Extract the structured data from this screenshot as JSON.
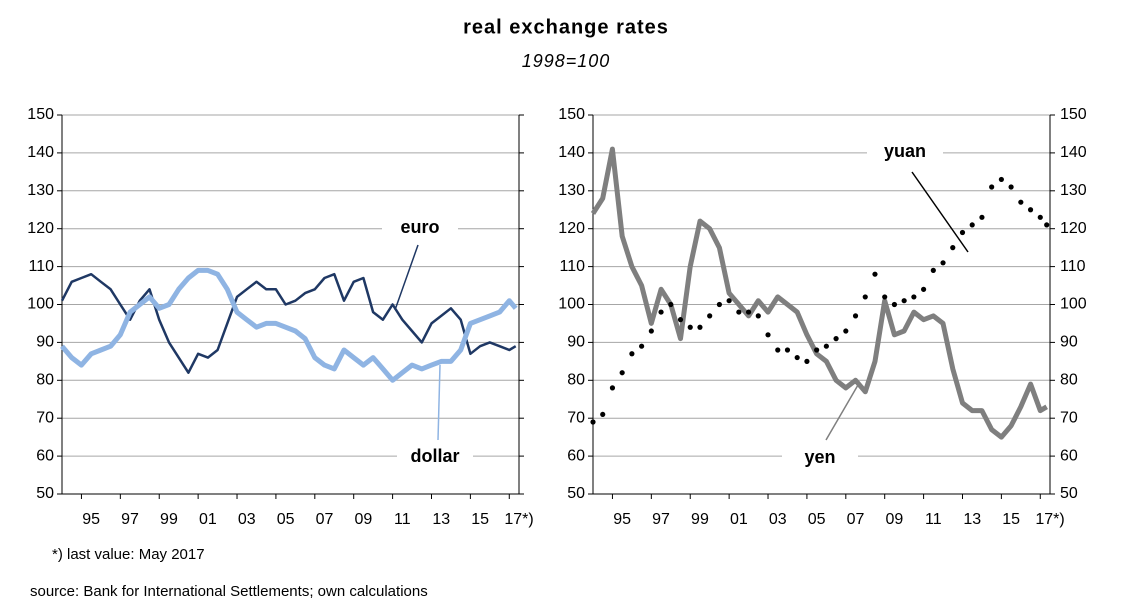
{
  "title": "real exchange rates",
  "subtitle": "1998=100",
  "footnote": "*) last value: May 2017",
  "source": "source: Bank for International Settlements; own calculations",
  "chart_data": [
    {
      "type": "line",
      "x": [
        1994,
        1994.5,
        1995,
        1995.5,
        1996,
        1996.5,
        1997,
        1997.5,
        1998,
        1998.5,
        1999,
        1999.5,
        2000,
        2000.5,
        2001,
        2001.5,
        2002,
        2002.5,
        2003,
        2003.5,
        2004,
        2004.5,
        2005,
        2005.5,
        2006,
        2006.5,
        2007,
        2007.5,
        2008,
        2008.5,
        2009,
        2009.5,
        2010,
        2010.5,
        2011,
        2011.5,
        2012,
        2012.5,
        2013,
        2013.5,
        2014,
        2014.5,
        2015,
        2015.5,
        2016,
        2016.5,
        2017,
        2017.33
      ],
      "series": [
        {
          "name": "euro",
          "color": "#1f3864",
          "values": [
            101,
            106,
            107,
            108,
            106,
            104,
            100,
            96,
            101,
            104,
            96,
            90,
            86,
            82,
            87,
            86,
            88,
            95,
            102,
            104,
            106,
            104,
            104,
            100,
            101,
            103,
            104,
            107,
            108,
            101,
            106,
            107,
            98,
            96,
            100,
            96,
            93,
            90,
            95,
            97,
            99,
            96,
            87,
            89,
            90,
            89,
            88,
            89
          ]
        },
        {
          "name": "dollar",
          "color": "#8fb4e3",
          "values": [
            89,
            86,
            84,
            87,
            88,
            89,
            92,
            98,
            100,
            102,
            99,
            100,
            104,
            107,
            109,
            109,
            108,
            104,
            98,
            96,
            94,
            95,
            95,
            94,
            93,
            91,
            86,
            84,
            83,
            88,
            86,
            84,
            86,
            83,
            80,
            82,
            84,
            83,
            84,
            85,
            85,
            88,
            95,
            96,
            97,
            98,
            101,
            99
          ]
        }
      ],
      "xlim": [
        1994,
        2017.5
      ],
      "xticks": [
        {
          "value": 1995,
          "label": "95"
        },
        {
          "value": 1997,
          "label": "97"
        },
        {
          "value": 1999,
          "label": "99"
        },
        {
          "value": 2001,
          "label": "01"
        },
        {
          "value": 2003,
          "label": "03"
        },
        {
          "value": 2005,
          "label": "05"
        },
        {
          "value": 2007,
          "label": "07"
        },
        {
          "value": 2009,
          "label": "09"
        },
        {
          "value": 2011,
          "label": "11"
        },
        {
          "value": 2013,
          "label": "13"
        },
        {
          "value": 2015,
          "label": "15"
        },
        {
          "value": 2017,
          "label": "17*)"
        }
      ],
      "ylim": [
        50,
        150
      ],
      "yticks": [
        50,
        60,
        70,
        80,
        90,
        100,
        110,
        120,
        130,
        140,
        150
      ],
      "grid": true
    },
    {
      "type": "line",
      "x": [
        1994,
        1994.5,
        1995,
        1995.5,
        1996,
        1996.5,
        1997,
        1997.5,
        1998,
        1998.5,
        1999,
        1999.5,
        2000,
        2000.5,
        2001,
        2001.5,
        2002,
        2002.5,
        2003,
        2003.5,
        2004,
        2004.5,
        2005,
        2005.5,
        2006,
        2006.5,
        2007,
        2007.5,
        2008,
        2008.5,
        2009,
        2009.5,
        2010,
        2010.5,
        2011,
        2011.5,
        2012,
        2012.5,
        2013,
        2013.5,
        2014,
        2014.5,
        2015,
        2015.5,
        2016,
        2016.5,
        2017,
        2017.33
      ],
      "series": [
        {
          "name": "yen",
          "color": "#7f7f7f",
          "values": [
            124,
            128,
            141,
            118,
            110,
            105,
            95,
            104,
            100,
            91,
            110,
            122,
            120,
            115,
            103,
            100,
            97,
            101,
            98,
            102,
            100,
            98,
            92,
            87,
            85,
            80,
            78,
            80,
            77,
            85,
            101,
            92,
            93,
            98,
            96,
            97,
            95,
            83,
            74,
            72,
            72,
            67,
            65,
            68,
            73,
            79,
            72,
            73
          ]
        },
        {
          "name": "yuan",
          "color": "#000000",
          "style": "dotted",
          "values": [
            69,
            71,
            78,
            82,
            87,
            89,
            93,
            98,
            100,
            96,
            94,
            94,
            97,
            100,
            101,
            98,
            98,
            97,
            92,
            88,
            88,
            86,
            85,
            88,
            89,
            91,
            93,
            97,
            102,
            108,
            102,
            100,
            101,
            102,
            104,
            109,
            111,
            115,
            119,
            121,
            123,
            131,
            133,
            131,
            127,
            125,
            123,
            121
          ]
        }
      ],
      "xlim": [
        1994,
        2017.5
      ],
      "xticks": [
        {
          "value": 1995,
          "label": "95"
        },
        {
          "value": 1997,
          "label": "97"
        },
        {
          "value": 1999,
          "label": "99"
        },
        {
          "value": 2001,
          "label": "01"
        },
        {
          "value": 2003,
          "label": "03"
        },
        {
          "value": 2005,
          "label": "05"
        },
        {
          "value": 2007,
          "label": "07"
        },
        {
          "value": 2009,
          "label": "09"
        },
        {
          "value": 2011,
          "label": "11"
        },
        {
          "value": 2013,
          "label": "13"
        },
        {
          "value": 2015,
          "label": "15"
        },
        {
          "value": 2017,
          "label": "17*)"
        }
      ],
      "ylim": [
        50,
        150
      ],
      "yticks": [
        50,
        60,
        70,
        80,
        90,
        100,
        110,
        120,
        130,
        140,
        150
      ],
      "grid": true
    }
  ]
}
